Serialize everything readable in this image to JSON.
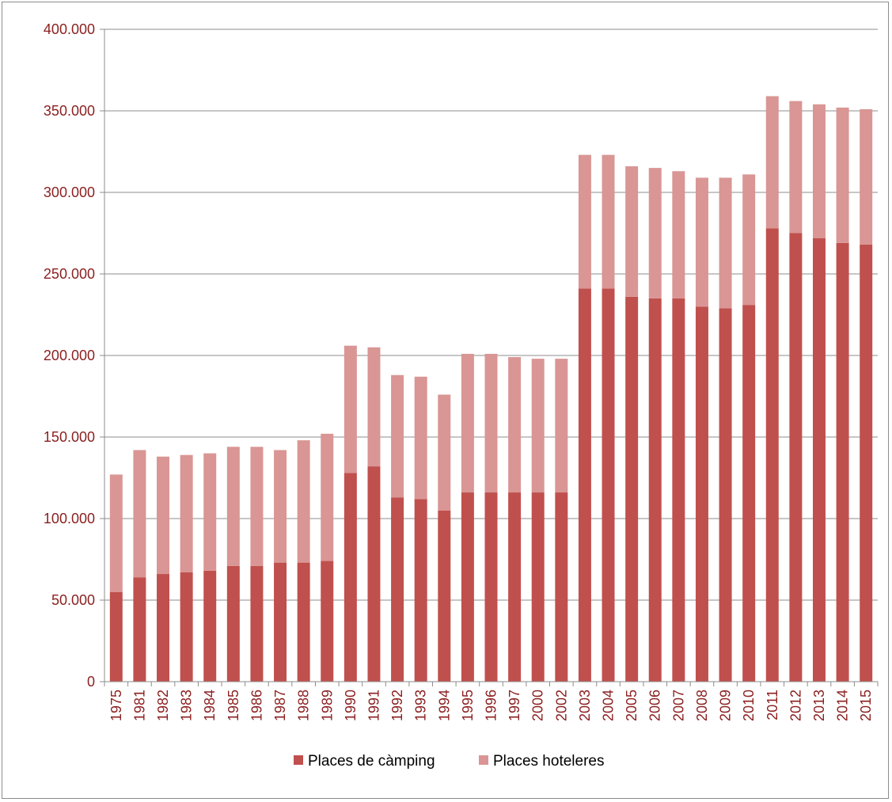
{
  "chart_data": {
    "type": "bar",
    "stacked": true,
    "title": "",
    "xlabel": "",
    "ylabel": "",
    "ylim": [
      0,
      400000
    ],
    "yticks": [
      0,
      50000,
      100000,
      150000,
      200000,
      250000,
      300000,
      350000,
      400000
    ],
    "ytick_labels": [
      "0",
      "50.000",
      "100.000",
      "150.000",
      "200.000",
      "250.000",
      "300.000",
      "350.000",
      "400.000"
    ],
    "grid": true,
    "legend_position": "bottom",
    "categories": [
      "1975",
      "1981",
      "1982",
      "1983",
      "1984",
      "1985",
      "1986",
      "1987",
      "1988",
      "1989",
      "1990",
      "1991",
      "1992",
      "1993",
      "1994",
      "1995",
      "1996",
      "1997",
      "2000",
      "2002",
      "2003",
      "2004",
      "2005",
      "2006",
      "2007",
      "2008",
      "2009",
      "2010",
      "2011",
      "2012",
      "2013",
      "2014",
      "2015"
    ],
    "series": [
      {
        "name": "Places de càmping",
        "color": "#c0504d",
        "values": [
          55000,
          64000,
          66000,
          67000,
          68000,
          71000,
          71000,
          73000,
          73000,
          74000,
          128000,
          132000,
          113000,
          112000,
          105000,
          116000,
          116000,
          116000,
          116000,
          116000,
          241000,
          241000,
          236000,
          235000,
          235000,
          230000,
          229000,
          231000,
          278000,
          275000,
          272000,
          269000,
          268000
        ]
      },
      {
        "name": "Places hoteleres",
        "color": "#d99694",
        "values": [
          72000,
          78000,
          72000,
          72000,
          72000,
          73000,
          73000,
          69000,
          75000,
          78000,
          78000,
          73000,
          75000,
          75000,
          71000,
          85000,
          85000,
          83000,
          82000,
          82000,
          82000,
          82000,
          80000,
          80000,
          78000,
          79000,
          80000,
          80000,
          81000,
          81000,
          82000,
          83000,
          83000
        ]
      }
    ]
  }
}
